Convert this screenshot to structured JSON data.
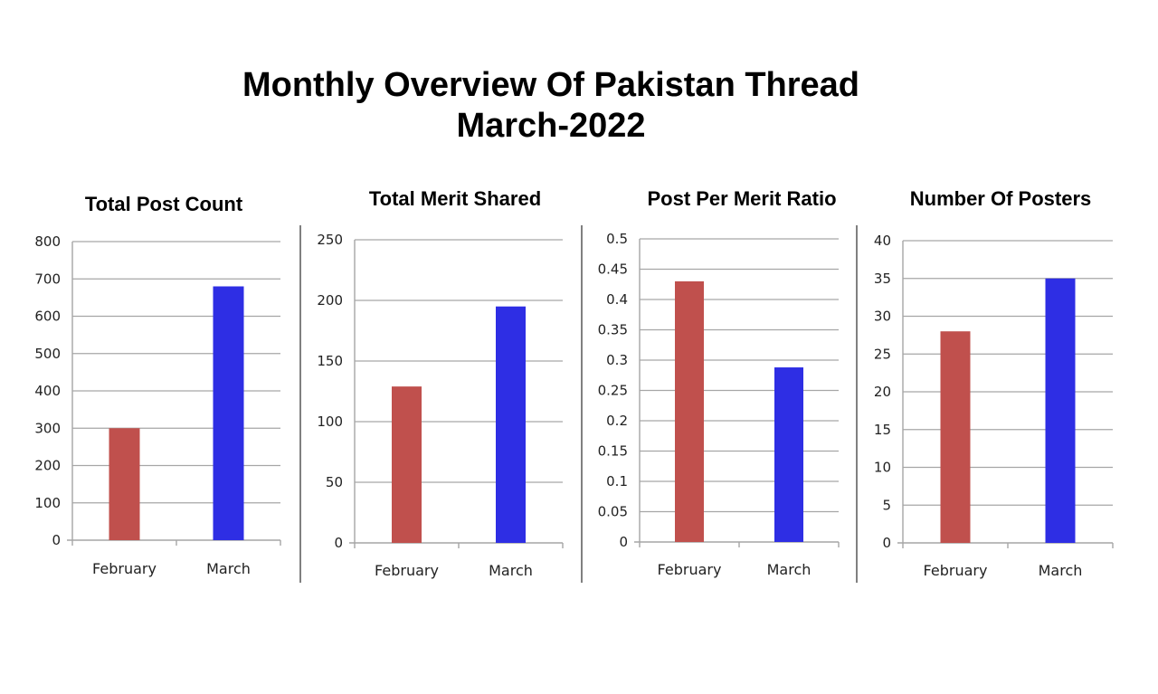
{
  "title_line_1": "Monthly Overview Of Pakistan Thread",
  "title_line_2": "March-2022",
  "colors": {
    "February": "#c0504d",
    "March": "#2e2ee4",
    "grid": "#a6a6a6",
    "divider": "#808080"
  },
  "chart_data": [
    {
      "type": "bar",
      "title": "Total Post Count",
      "categories": [
        "February",
        "March"
      ],
      "values": [
        300,
        680
      ],
      "ylim": [
        0,
        800
      ],
      "yticks": [
        0,
        100,
        200,
        300,
        400,
        500,
        600,
        700,
        800
      ],
      "grid": true
    },
    {
      "type": "bar",
      "title": "Total Merit Shared",
      "categories": [
        "February",
        "March"
      ],
      "values": [
        129,
        195
      ],
      "ylim": [
        0,
        250
      ],
      "yticks": [
        0,
        50,
        100,
        150,
        200,
        250
      ],
      "grid": true
    },
    {
      "type": "bar",
      "title": "Post Per Merit Ratio",
      "categories": [
        "February",
        "March"
      ],
      "values": [
        0.43,
        0.288
      ],
      "ylim": [
        0,
        0.5
      ],
      "yticks": [
        "0",
        "0.05",
        "0.1",
        "0.15",
        "0.2",
        "0.25",
        "0.3",
        "0.35",
        "0.4",
        "0.45",
        "0.5"
      ],
      "grid": true
    },
    {
      "type": "bar",
      "title": "Number Of Posters",
      "categories": [
        "February",
        "March"
      ],
      "values": [
        28,
        35
      ],
      "ylim": [
        0,
        40
      ],
      "yticks": [
        0,
        5,
        10,
        15,
        20,
        25,
        30,
        35,
        40
      ],
      "grid": true
    }
  ]
}
